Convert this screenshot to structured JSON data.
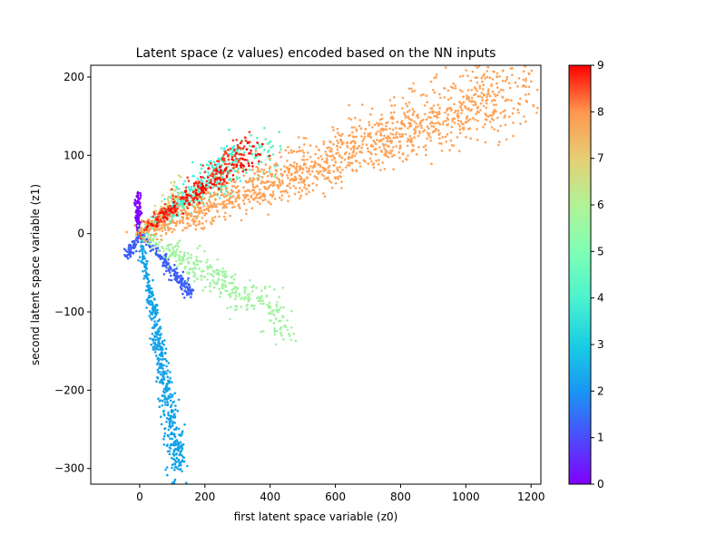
{
  "chart_data": {
    "type": "scatter",
    "title": "Latent space (z values) encoded based on the NN inputs",
    "xlabel": "first latent space variable (z0)",
    "ylabel": "second latent space variable (z1)",
    "xlim": [
      -150,
      1230
    ],
    "ylim": [
      -320,
      215
    ],
    "xticks": [
      0,
      200,
      400,
      600,
      800,
      1000,
      1200
    ],
    "yticks": [
      -300,
      -200,
      -100,
      0,
      100,
      200
    ],
    "grid": false,
    "colorbar": {
      "label": "",
      "range": [
        0,
        9
      ],
      "ticks": [
        0,
        1,
        2,
        3,
        4,
        5,
        6,
        7,
        8,
        9
      ],
      "colormap": "rainbow"
    },
    "marker_size": 2,
    "clusters": [
      {
        "label": 0,
        "color": "#8000ff",
        "description_points": [
          [
            -5,
            0
          ],
          [
            -5,
            40
          ]
        ],
        "spread": [
          4,
          8
        ]
      },
      {
        "label": 1,
        "color": "#3b5ef8",
        "direction_points": [
          [
            0,
            0
          ],
          [
            160,
            -75
          ],
          [
            -40,
            -35
          ]
        ],
        "spread": [
          6,
          4
        ]
      },
      {
        "label": 2,
        "color": "#13a2e8",
        "direction_points": [
          [
            0,
            0
          ],
          [
            120,
            -300
          ]
        ],
        "spread": [
          10,
          12
        ]
      },
      {
        "label": 3,
        "color": "#3ef5e0",
        "direction_points": [
          [
            0,
            0
          ],
          [
            300,
            100
          ]
        ],
        "spread": [
          10,
          10
        ]
      },
      {
        "label": 4,
        "color": "#5cf2b8",
        "direction_points": [
          [
            0,
            0
          ],
          [
            420,
            115
          ]
        ],
        "spread": [
          12,
          12
        ]
      },
      {
        "label": 5,
        "color": "#a0f3a0",
        "direction_points": [
          [
            0,
            0
          ],
          [
            450,
            -110
          ]
        ],
        "spread": [
          14,
          12
        ]
      },
      {
        "label": 6,
        "color": "#d9d67b",
        "direction_points": [
          [
            0,
            0
          ],
          [
            120,
            60
          ]
        ],
        "spread": [
          6,
          6
        ]
      },
      {
        "label": 7,
        "color": "#ffa256",
        "direction_points": [
          [
            0,
            0
          ],
          [
            1170,
            190
          ]
        ],
        "spread": [
          40,
          18
        ]
      },
      {
        "label": 8,
        "color": "#ff3c1e",
        "direction_points": [
          [
            0,
            0
          ],
          [
            330,
            110
          ]
        ],
        "spread": [
          8,
          10
        ]
      },
      {
        "label": 9,
        "color": "#ff0000",
        "direction_points": [
          [
            0,
            0
          ],
          [
            380,
            110
          ]
        ],
        "spread": [
          8,
          8
        ]
      }
    ]
  }
}
